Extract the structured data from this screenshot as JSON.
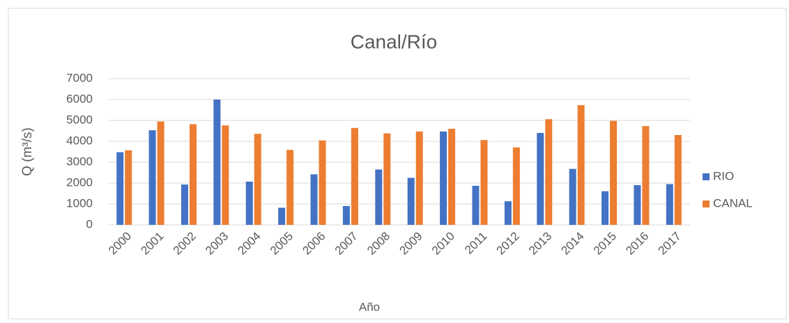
{
  "chart_data": {
    "type": "bar",
    "title": "Canal/Río",
    "xlabel": "Año",
    "ylabel": "Q (m³/s)",
    "categories": [
      "2000",
      "2001",
      "2002",
      "2003",
      "2004",
      "2005",
      "2006",
      "2007",
      "2008",
      "2009",
      "2010",
      "2011",
      "2012",
      "2013",
      "2014",
      "2015",
      "2016",
      "2017"
    ],
    "series": [
      {
        "name": "RIO",
        "color": "#4472c4",
        "values": [
          3480,
          4530,
          1930,
          6000,
          2070,
          820,
          2420,
          900,
          2650,
          2250,
          4470,
          1870,
          1130,
          4400,
          2680,
          1610,
          1900,
          1950
        ]
      },
      {
        "name": "CANAL",
        "color": "#ed7d31",
        "values": [
          3570,
          4950,
          4820,
          4760,
          4360,
          3590,
          4040,
          4640,
          4380,
          4470,
          4600,
          4060,
          3710,
          5060,
          5730,
          4980,
          4730,
          4300
        ]
      }
    ],
    "ylim": [
      0,
      7000
    ],
    "yticks": [
      0,
      1000,
      2000,
      3000,
      4000,
      5000,
      6000,
      7000
    ],
    "grid": true,
    "legend": "right"
  }
}
